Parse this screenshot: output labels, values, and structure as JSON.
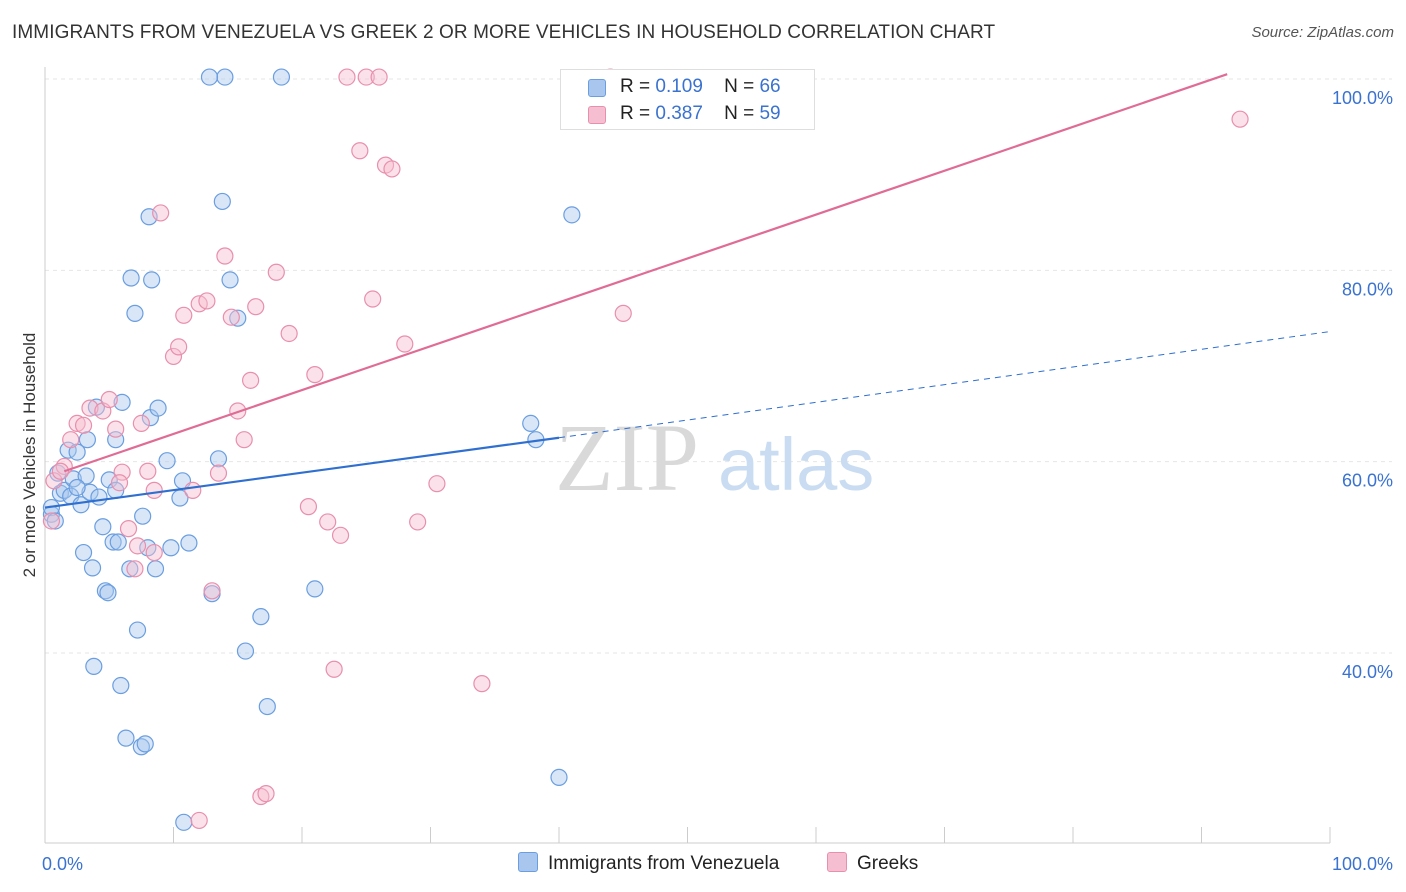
{
  "title": "IMMIGRANTS FROM VENEZUELA VS GREEK 2 OR MORE VEHICLES IN HOUSEHOLD CORRELATION CHART",
  "source": "Source: ZipAtlas.com",
  "watermark": {
    "zip": "ZIP",
    "atlas": "atlas"
  },
  "legend": {
    "r_label": "R =",
    "n_label": "N =",
    "series": [
      {
        "r": "0.109",
        "n": "66",
        "color": "#a9c7ee",
        "border": "#6a9ee0"
      },
      {
        "r": "0.387",
        "n": "59",
        "color": "#f6bfd1",
        "border": "#e88fad"
      }
    ]
  },
  "bottom_legend": [
    "Immigrants from Venezuela",
    "Greeks"
  ],
  "chart_data": {
    "type": "scatter",
    "title": "IMMIGRANTS FROM VENEZUELA VS GREEK 2 OR MORE VEHICLES IN HOUSEHOLD CORRELATION CHART",
    "xlabel": "",
    "ylabel": "2 or more Vehicles in Household",
    "xlim": [
      0,
      100
    ],
    "ylim": [
      20,
      102
    ],
    "x_tick_labels": [
      "0.0%",
      "100.0%"
    ],
    "y_tick_labels": [
      "40.0%",
      "60.0%",
      "80.0%",
      "100.0%"
    ],
    "y_ticks": [
      40,
      60,
      80,
      100
    ],
    "grid": true,
    "legend_position": "top-center",
    "series": [
      {
        "name": "Immigrants from Venezuela",
        "color": "#6a9ee0",
        "fill": "#a9c7ee",
        "line_color": "#2f6fd0",
        "trend": {
          "x0": 0,
          "y0": 55.2,
          "x1": 40,
          "y1": 62.5,
          "dashed_to_x": 100,
          "dashed_y1": 73.6
        },
        "points": [
          [
            0.5,
            54.5
          ],
          [
            0.5,
            55.2
          ],
          [
            0.8,
            53.8
          ],
          [
            1.0,
            58.8
          ],
          [
            1.2,
            56.7
          ],
          [
            1.5,
            57.0
          ],
          [
            1.8,
            61.2
          ],
          [
            2.0,
            56.4
          ],
          [
            2.2,
            58.2
          ],
          [
            2.5,
            61.0
          ],
          [
            2.8,
            55.5
          ],
          [
            3.0,
            50.5
          ],
          [
            3.2,
            58.5
          ],
          [
            3.3,
            62.3
          ],
          [
            3.5,
            56.8
          ],
          [
            3.7,
            48.9
          ],
          [
            3.8,
            38.6
          ],
          [
            4.0,
            65.7
          ],
          [
            4.2,
            56.3
          ],
          [
            4.5,
            53.2
          ],
          [
            4.7,
            46.5
          ],
          [
            4.9,
            46.3
          ],
          [
            5.0,
            58.1
          ],
          [
            5.3,
            51.6
          ],
          [
            5.5,
            57.0
          ],
          [
            5.7,
            51.6
          ],
          [
            5.9,
            36.6
          ],
          [
            6.0,
            66.2
          ],
          [
            6.3,
            31.1
          ],
          [
            6.6,
            48.8
          ],
          [
            6.7,
            79.2
          ],
          [
            7.0,
            75.5
          ],
          [
            7.2,
            42.4
          ],
          [
            7.5,
            30.2
          ],
          [
            7.6,
            54.3
          ],
          [
            7.8,
            30.5
          ],
          [
            8.0,
            51.0
          ],
          [
            8.1,
            85.6
          ],
          [
            8.2,
            64.6
          ],
          [
            8.3,
            79.0
          ],
          [
            8.6,
            48.8
          ],
          [
            8.8,
            65.6
          ],
          [
            9.5,
            60.1
          ],
          [
            9.8,
            51.0
          ],
          [
            10.5,
            56.2
          ],
          [
            10.7,
            58.0
          ],
          [
            10.8,
            22.3
          ],
          [
            11.2,
            51.5
          ],
          [
            13.0,
            46.2
          ],
          [
            13.5,
            60.3
          ],
          [
            13.8,
            87.2
          ],
          [
            14.0,
            100.2
          ],
          [
            14.4,
            79.0
          ],
          [
            15.0,
            75.0
          ],
          [
            15.6,
            40.2
          ],
          [
            16.8,
            43.8
          ],
          [
            17.3,
            34.4
          ],
          [
            18.4,
            100.2
          ],
          [
            37.8,
            64.0
          ],
          [
            38.2,
            62.3
          ],
          [
            41.0,
            85.8
          ],
          [
            40.0,
            27.0
          ],
          [
            12.8,
            100.2
          ],
          [
            21.0,
            46.7
          ],
          [
            5.5,
            62.3
          ],
          [
            2.5,
            57.3
          ]
        ]
      },
      {
        "name": "Greeks",
        "color": "#e88fad",
        "fill": "#f6bfd1",
        "line_color": "#e06c96",
        "trend": {
          "x0": 1.5,
          "y0": 59.0,
          "x1": 92,
          "y1": 100.5
        },
        "points": [
          [
            0.5,
            53.8
          ],
          [
            0.7,
            58.0
          ],
          [
            1.5,
            59.5
          ],
          [
            2.0,
            62.3
          ],
          [
            2.5,
            64.0
          ],
          [
            3.0,
            63.8
          ],
          [
            3.5,
            65.6
          ],
          [
            4.5,
            65.3
          ],
          [
            5.0,
            66.5
          ],
          [
            5.5,
            63.4
          ],
          [
            6.0,
            58.9
          ],
          [
            6.5,
            53.0
          ],
          [
            7.0,
            48.8
          ],
          [
            7.2,
            51.2
          ],
          [
            7.5,
            64.0
          ],
          [
            8.0,
            59.0
          ],
          [
            8.5,
            57.0
          ],
          [
            9.0,
            86.0
          ],
          [
            10.0,
            71.0
          ],
          [
            10.4,
            72.0
          ],
          [
            10.8,
            75.3
          ],
          [
            11.5,
            57.0
          ],
          [
            12.0,
            76.5
          ],
          [
            12.6,
            76.8
          ],
          [
            13.0,
            46.5
          ],
          [
            13.5,
            58.8
          ],
          [
            14.0,
            81.5
          ],
          [
            14.5,
            75.1
          ],
          [
            15.0,
            65.3
          ],
          [
            15.5,
            62.3
          ],
          [
            16.0,
            68.5
          ],
          [
            16.4,
            76.2
          ],
          [
            16.8,
            25.0
          ],
          [
            17.2,
            25.3
          ],
          [
            18.0,
            79.8
          ],
          [
            19.0,
            73.4
          ],
          [
            20.5,
            55.3
          ],
          [
            21.0,
            69.1
          ],
          [
            22.0,
            53.7
          ],
          [
            22.5,
            38.3
          ],
          [
            23.0,
            52.3
          ],
          [
            23.5,
            100.2
          ],
          [
            24.5,
            92.5
          ],
          [
            25.0,
            100.2
          ],
          [
            25.5,
            77.0
          ],
          [
            26.0,
            100.2
          ],
          [
            26.5,
            91.0
          ],
          [
            27.0,
            90.6
          ],
          [
            28.0,
            72.3
          ],
          [
            29.0,
            53.7
          ],
          [
            30.5,
            57.7
          ],
          [
            34.0,
            36.8
          ],
          [
            44.0,
            100.2
          ],
          [
            45.0,
            75.5
          ],
          [
            93.0,
            95.8
          ],
          [
            12.0,
            22.5
          ],
          [
            5.8,
            57.8
          ],
          [
            8.5,
            50.5
          ],
          [
            1.2,
            59.0
          ]
        ]
      }
    ]
  }
}
